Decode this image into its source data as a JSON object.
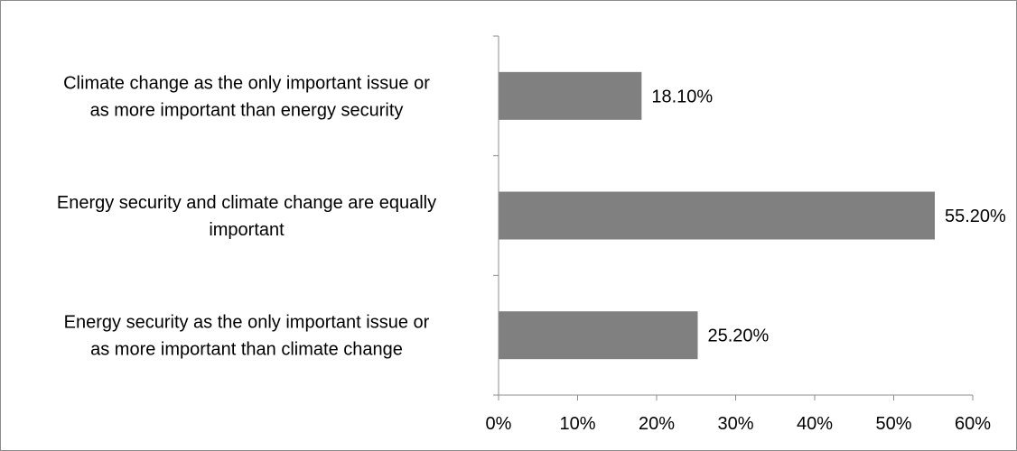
{
  "chart_data": {
    "type": "bar",
    "orientation": "horizontal",
    "title": "",
    "xlabel": "",
    "ylabel": "",
    "categories": [
      [
        "Climate change as the only important issue or",
        "as more important than energy security"
      ],
      [
        "Energy security and climate change are equally",
        "important"
      ],
      [
        "Energy security as the only important issue or",
        "as more important than climate change"
      ]
    ],
    "values": [
      18.1,
      55.2,
      25.2
    ],
    "data_labels": [
      "18.10%",
      "55.20%",
      "25.20%"
    ],
    "xlim": [
      0,
      60
    ],
    "x_ticks": [
      0,
      10,
      20,
      30,
      40,
      50,
      60
    ],
    "x_tick_labels": [
      "0%",
      "10%",
      "20%",
      "30%",
      "40%",
      "50%",
      "60%"
    ],
    "grid": false,
    "legend": "none",
    "bar_color": "#808080",
    "axis_color": "#8c8c8c"
  }
}
